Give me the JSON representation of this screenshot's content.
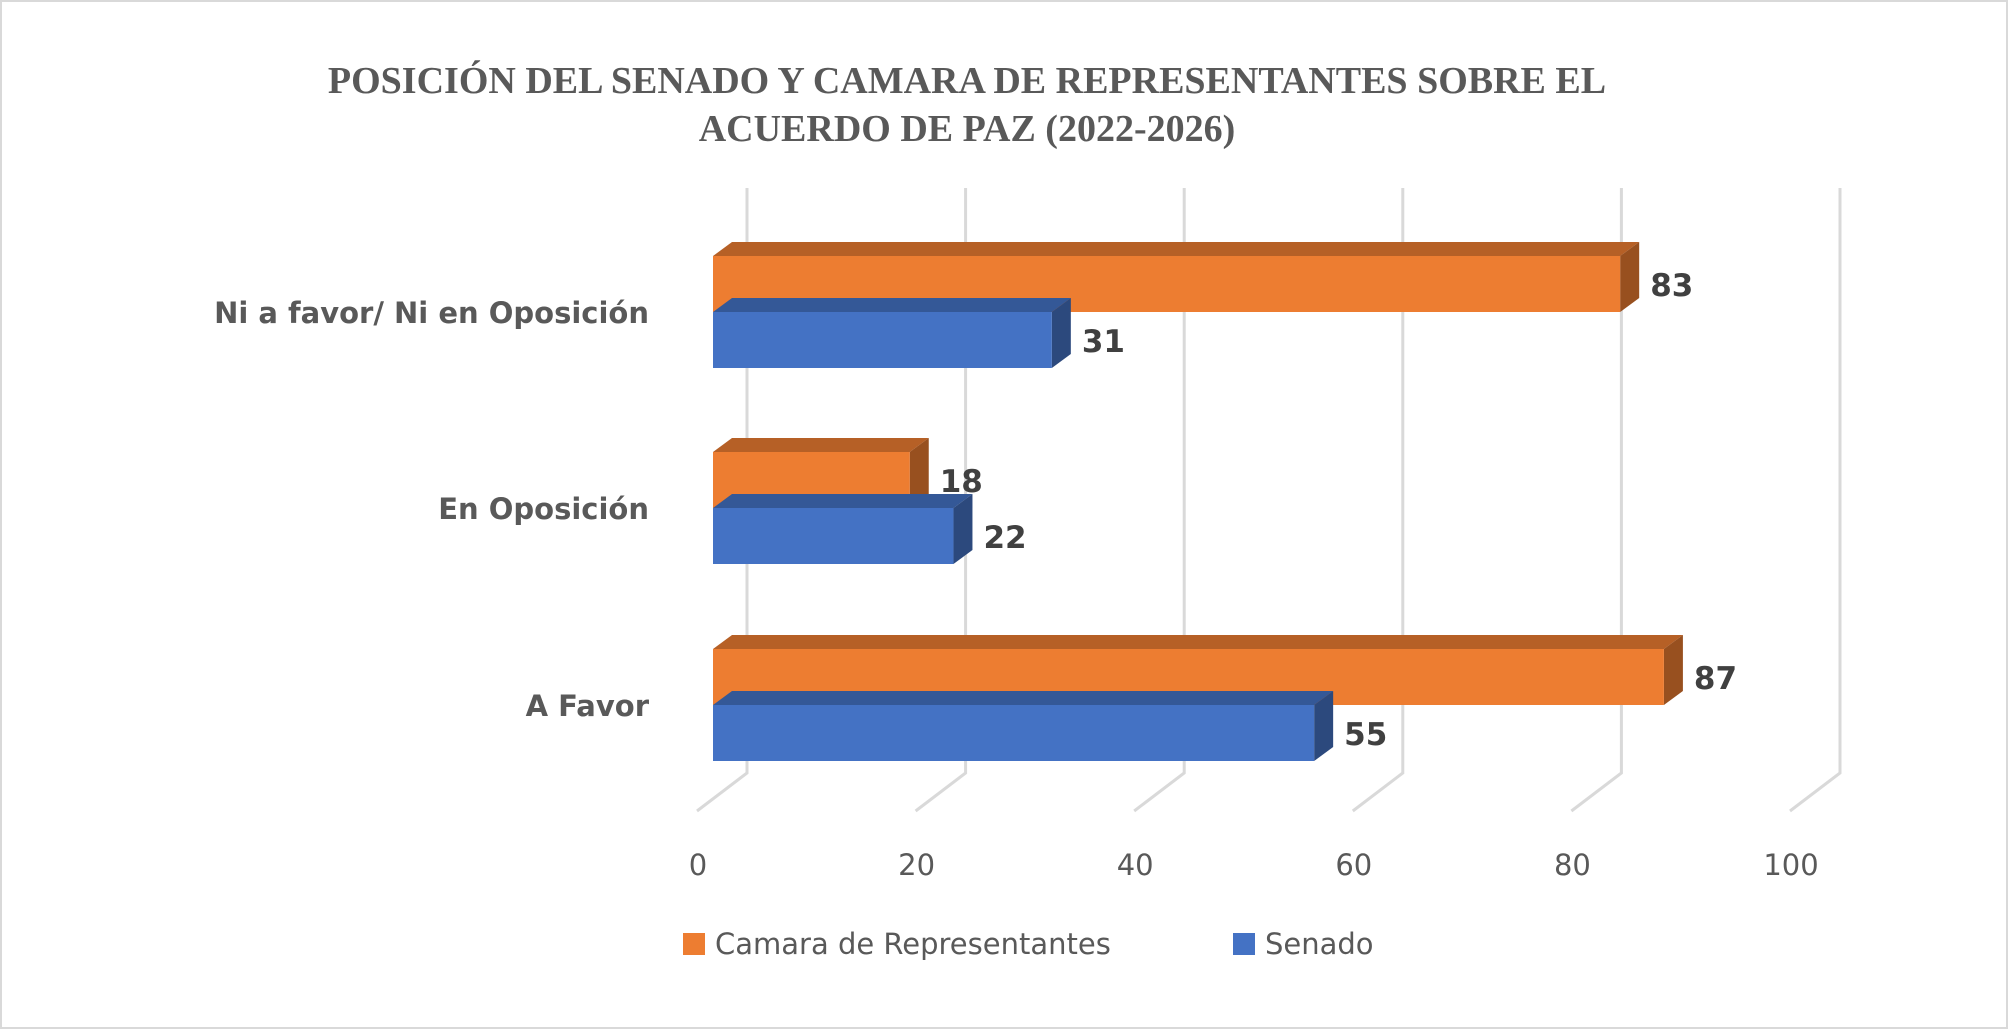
{
  "chart_data": {
    "type": "bar",
    "orientation": "horizontal",
    "style": "3d-clustered",
    "title_lines": [
      "POSICIÓN DEL SENADO Y CAMARA DE REPRESENTANTES SOBRE EL",
      "ACUERDO DE PAZ (2022-2026)"
    ],
    "categories": [
      "Ni a favor/ Ni en Oposición",
      "En Oposición",
      "A Favor"
    ],
    "series": [
      {
        "name": "Camara de Representantes",
        "color": "#ED7D31",
        "values": [
          83,
          18,
          87
        ]
      },
      {
        "name": "Senado",
        "color": "#4472C4",
        "values": [
          31,
          22,
          55
        ]
      }
    ],
    "xlim": [
      0,
      100
    ],
    "x_ticks": [
      "0",
      "20",
      "40",
      "60",
      "80",
      "100"
    ],
    "grid": true,
    "legend": "bottom",
    "data_labels": true
  }
}
